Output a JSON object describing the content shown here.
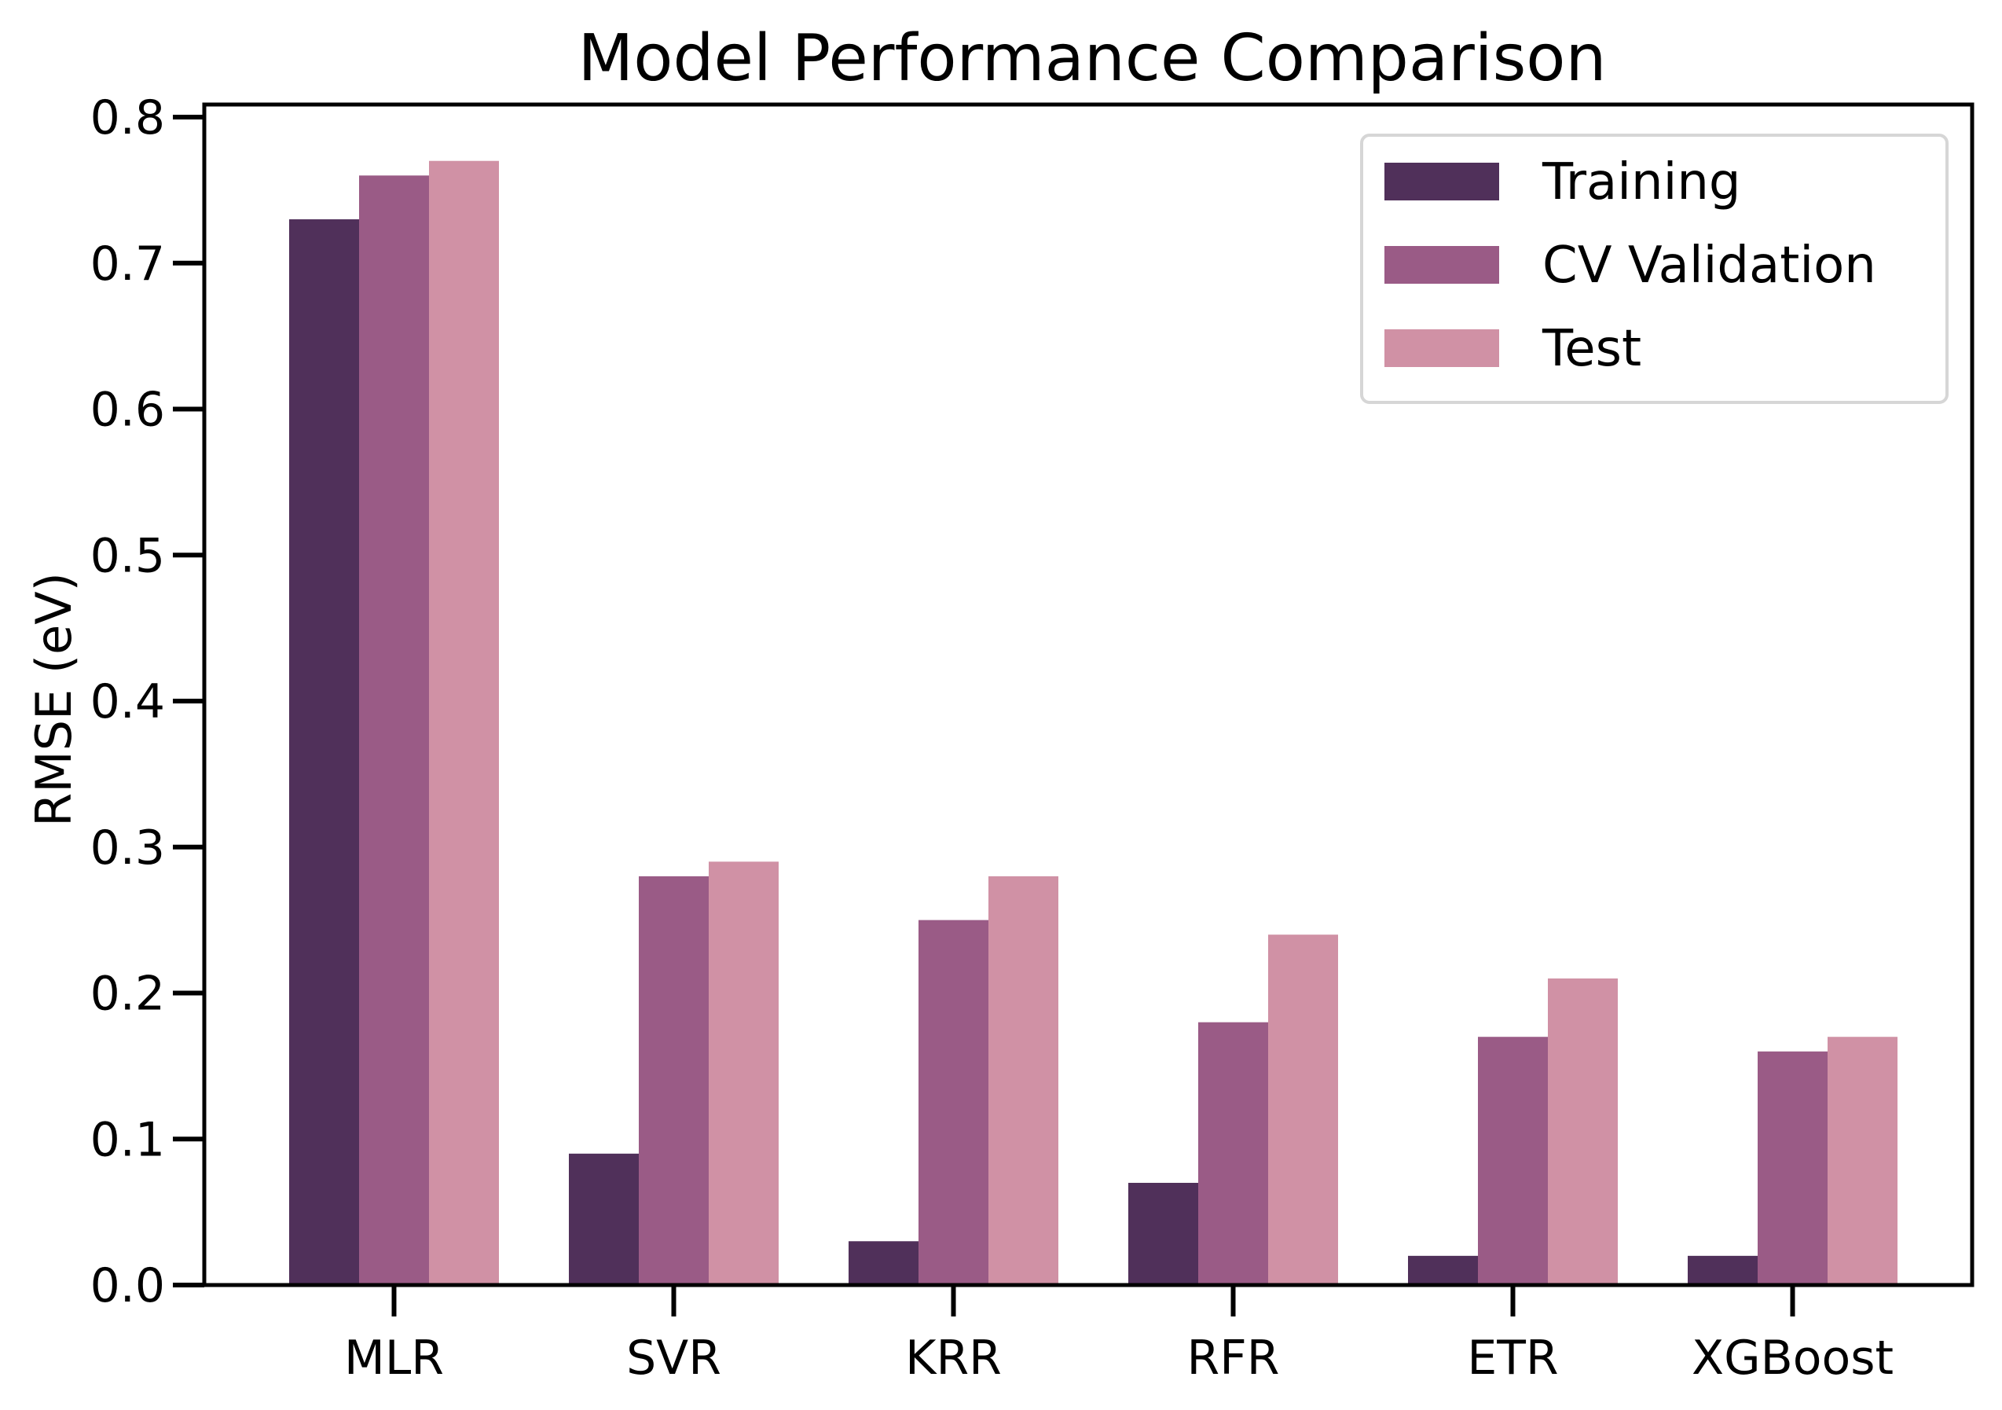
{
  "chart_data": {
    "type": "bar",
    "title": "Model Performance Comparison",
    "xlabel": "",
    "ylabel": "RMSE (eV)",
    "ylim": [
      0,
      0.8
    ],
    "yticks": [
      "0.0",
      "0.1",
      "0.2",
      "0.3",
      "0.4",
      "0.5",
      "0.6",
      "0.7",
      "0.8"
    ],
    "categories": [
      "MLR",
      "SVR",
      "KRR",
      "RFR",
      "ETR",
      "XGBoost"
    ],
    "series": [
      {
        "name": "Training",
        "color": "#50305a",
        "values": [
          0.73,
          0.09,
          0.03,
          0.07,
          0.02,
          0.02
        ]
      },
      {
        "name": "CV Validation",
        "color": "#9a5b86",
        "values": [
          0.76,
          0.28,
          0.25,
          0.18,
          0.17,
          0.16
        ]
      },
      {
        "name": "Test",
        "color": "#d091a5",
        "values": [
          0.77,
          0.29,
          0.28,
          0.24,
          0.21,
          0.17
        ]
      }
    ],
    "legend": "top-right",
    "grid": false
  }
}
